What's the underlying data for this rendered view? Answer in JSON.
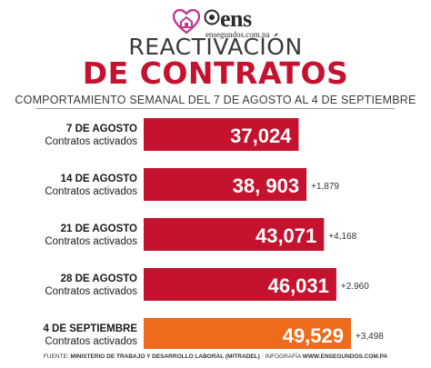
{
  "brand": {
    "name": "ens",
    "website": "ensegundos.com.pa"
  },
  "title_line1": "REACTIVACIÓN",
  "title_line2": "DE CONTRATOS",
  "subtitle": "COMPORTAMIENTO SEMANAL DEL 7 DE AGOSTO AL 4 DE SEPTIEMBRE",
  "footer": {
    "source_label": "FUENTE:",
    "source": "MINISTERIO DE TRABAJO Y DESARROLLO LABORAL (MITRADEL)",
    "infographic_label": "· INFOGRAFÍA",
    "infographic": "WWW.ENSEGUNDOS.COM.PA"
  },
  "colors": {
    "bar": "#c4122f",
    "bar_highlight": "#ee6b1c",
    "title_accent": "#c4122f",
    "heart": "#c23a8c"
  },
  "chart_data": {
    "type": "bar",
    "orientation": "horizontal",
    "categories": [
      "7 DE AGOSTO",
      "14 DE AGOSTO",
      "21 DE AGOSTO",
      "28 DE AGOSTO",
      "4 DE SEPTIEMBRE"
    ],
    "category_sublabel": "Contratos activados",
    "values": [
      37024,
      38903,
      43071,
      46031,
      49529
    ],
    "value_labels": [
      "37,024",
      "38, 903",
      "43,071",
      "46,031",
      "49,529"
    ],
    "change_labels": [
      "",
      "+1,879",
      "+4,168",
      "+2.960",
      "+3,498"
    ],
    "highlight_index": 4
  }
}
